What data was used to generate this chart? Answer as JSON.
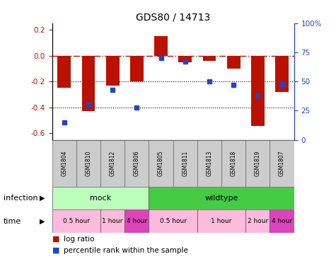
{
  "title": "GDS80 / 14713",
  "samples": [
    "GSM1804",
    "GSM1810",
    "GSM1812",
    "GSM1806",
    "GSM1805",
    "GSM1811",
    "GSM1813",
    "GSM1818",
    "GSM1819",
    "GSM1807"
  ],
  "log_ratios": [
    -0.25,
    -0.43,
    -0.23,
    -0.2,
    0.15,
    -0.05,
    -0.04,
    -0.1,
    -0.54,
    -0.28
  ],
  "percentile_ranks": [
    15,
    30,
    43,
    28,
    70,
    67,
    50,
    47,
    38,
    48
  ],
  "ylim": [
    -0.65,
    0.25
  ],
  "yticks_left": [
    0.2,
    0.0,
    -0.2,
    -0.4,
    -0.6
  ],
  "yticks_right": [
    100,
    75,
    50,
    25,
    0
  ],
  "bar_color": "#bb1100",
  "dot_color": "#2244cc",
  "infection_groups": [
    {
      "label": "mock",
      "start": 0,
      "end": 4,
      "color": "#bbffbb"
    },
    {
      "label": "wildtype",
      "start": 4,
      "end": 10,
      "color": "#44cc44"
    }
  ],
  "time_groups": [
    {
      "label": "0.5 hour",
      "start": 0,
      "end": 2,
      "color": "#ffbbdd"
    },
    {
      "label": "1 hour",
      "start": 2,
      "end": 3,
      "color": "#ffbbdd"
    },
    {
      "label": "4 hour",
      "start": 3,
      "end": 4,
      "color": "#dd44bb"
    },
    {
      "label": "0.5 hour",
      "start": 4,
      "end": 6,
      "color": "#ffbbdd"
    },
    {
      "label": "1 hour",
      "start": 6,
      "end": 8,
      "color": "#ffbbdd"
    },
    {
      "label": "2 hour",
      "start": 8,
      "end": 9,
      "color": "#ffbbdd"
    },
    {
      "label": "4 hour",
      "start": 9,
      "end": 10,
      "color": "#dd44bb"
    }
  ],
  "sample_bg": "#cccccc",
  "legend_bar_color": "#bb1100",
  "legend_dot_color": "#2244cc",
  "legend_bar_label": "log ratio",
  "legend_dot_label": "percentile rank within the sample",
  "infection_label": "infection",
  "time_label": "time"
}
